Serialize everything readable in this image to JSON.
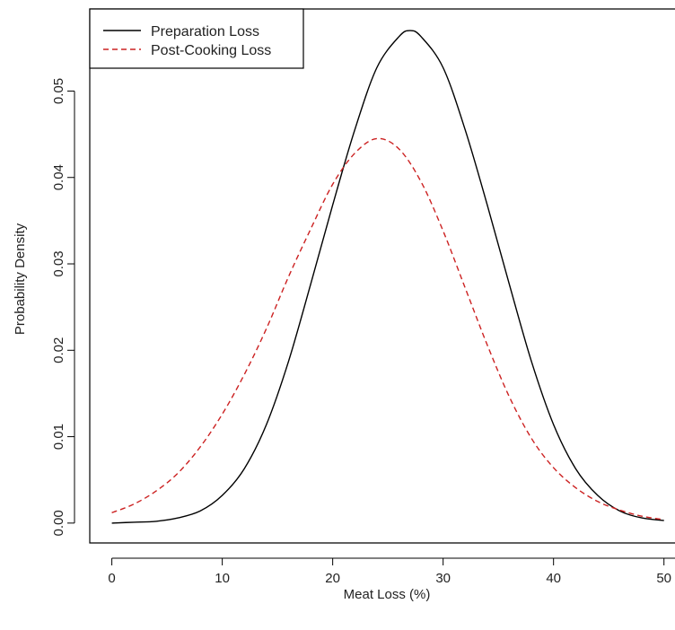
{
  "chart_data": {
    "type": "line",
    "title": "",
    "xlabel": "Meat Loss (%)",
    "ylabel": "Probability Density",
    "xlim": [
      -2,
      51
    ],
    "ylim": [
      -0.0023,
      0.0595
    ],
    "x_ticks": [
      0,
      10,
      20,
      30,
      40,
      50
    ],
    "x_tick_labels": [
      "0",
      "10",
      "20",
      "30",
      "40",
      "50"
    ],
    "y_ticks": [
      0.0,
      0.01,
      0.02,
      0.03,
      0.04,
      0.05
    ],
    "y_tick_labels": [
      "0.00",
      "0.01",
      "0.02",
      "0.03",
      "0.04",
      "0.05"
    ],
    "grid": false,
    "legend_position": "top-left",
    "series": [
      {
        "name": "Preparation Loss",
        "color": "#000000",
        "line_style": "solid",
        "x": [
          0,
          2,
          4,
          6,
          8,
          10,
          12,
          14,
          16,
          18,
          20,
          22,
          24,
          26,
          27,
          28,
          30,
          32,
          34,
          36,
          38,
          40,
          42,
          44,
          46,
          48,
          50
        ],
        "y": [
          0.0,
          0.0001,
          0.0002,
          0.0006,
          0.0014,
          0.0032,
          0.0063,
          0.0114,
          0.0187,
          0.0276,
          0.0368,
          0.0455,
          0.0527,
          0.0563,
          0.057,
          0.0563,
          0.0527,
          0.0455,
          0.0368,
          0.0276,
          0.0187,
          0.0114,
          0.0063,
          0.0032,
          0.0014,
          0.0006,
          0.0003
        ]
      },
      {
        "name": "Post-Cooking Loss",
        "color": "#cc2222",
        "line_style": "dashed",
        "x": [
          0,
          2,
          4,
          6,
          8,
          10,
          12,
          14,
          16,
          18,
          20,
          22,
          24,
          26,
          28,
          30,
          32,
          34,
          36,
          38,
          40,
          42,
          44,
          46,
          48,
          50
        ],
        "y": [
          0.0012,
          0.0022,
          0.0037,
          0.0058,
          0.0088,
          0.0126,
          0.0172,
          0.0225,
          0.0285,
          0.034,
          0.0392,
          0.0428,
          0.0445,
          0.0433,
          0.0395,
          0.0338,
          0.0272,
          0.0206,
          0.0146,
          0.0098,
          0.0064,
          0.0041,
          0.0025,
          0.0015,
          0.0008,
          0.0004
        ]
      }
    ]
  }
}
